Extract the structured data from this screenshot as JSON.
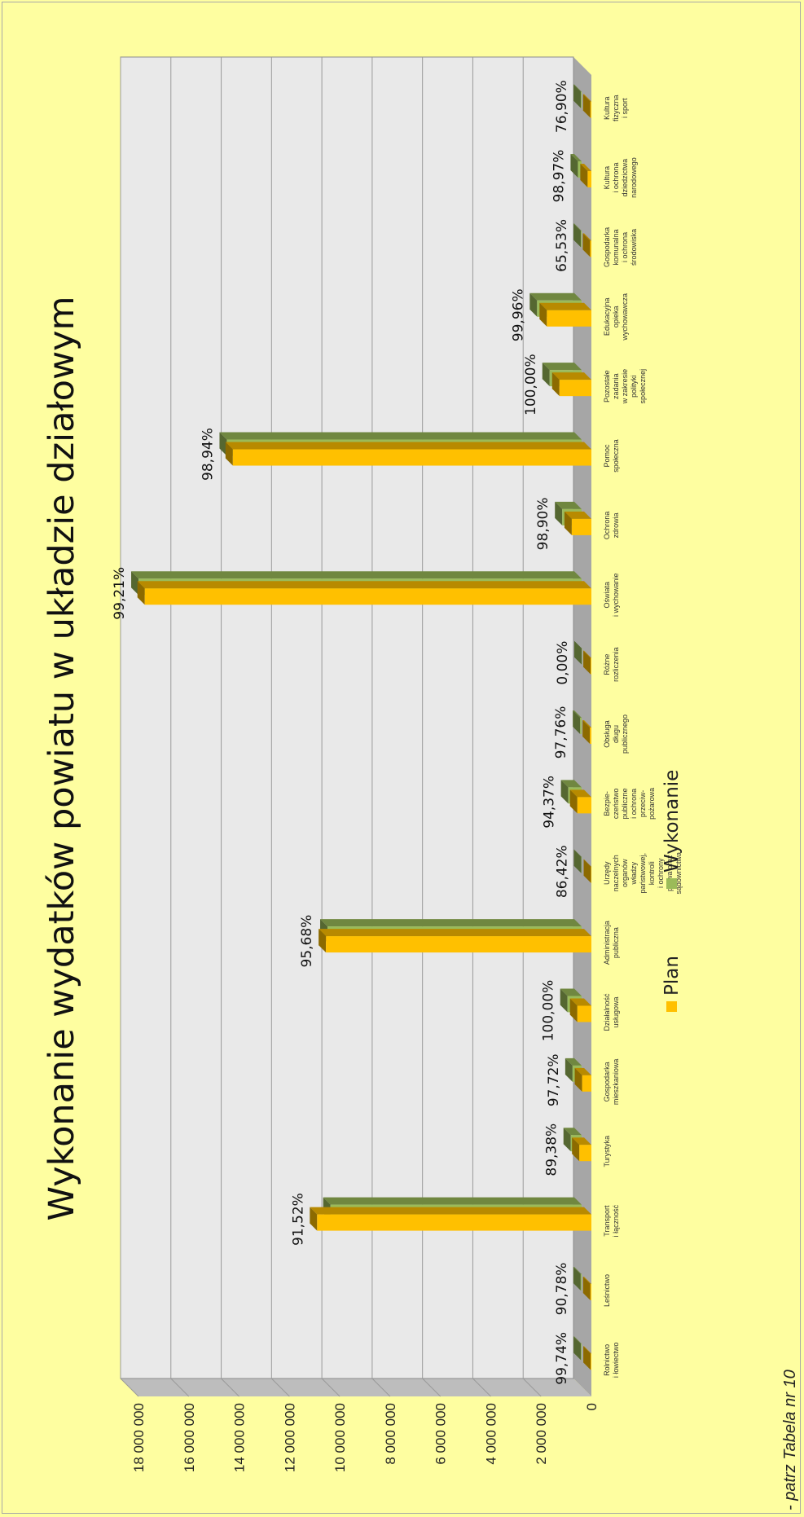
{
  "chart_data": {
    "type": "bar",
    "title": "Wykonanie wydatków powiatu w układzie działowym",
    "note": "- patrz Tabela nr 10",
    "ylim": [
      0,
      18000000
    ],
    "y_ticks": [
      "0",
      "2 000 000",
      "4 000 000",
      "6 000 000",
      "8 000 000",
      "10 000 000",
      "12 000 000",
      "14 000 000",
      "16 000 000",
      "18 000 000"
    ],
    "grid": true,
    "legend_position": "bottom",
    "categories": [
      [
        "Rolnictwo",
        "i łowiectwo"
      ],
      [
        "Leśnictwo"
      ],
      [
        "Transport",
        "i łączność"
      ],
      [
        "Turystyka"
      ],
      [
        "Gospodarka",
        "mieszkaniowa"
      ],
      [
        "Działalność",
        "usługowa"
      ],
      [
        "Administracja",
        "publiczna"
      ],
      [
        "Urzędy",
        "naczelnych",
        "organów",
        "władzy",
        "państwowej,",
        "kontroli",
        "i ochrony",
        "prawa oraz",
        "sądownictwa"
      ],
      [
        "Bezpie-",
        "czeństwo",
        "publiczne",
        "i ochrona",
        "przeciw-",
        "pożarowa"
      ],
      [
        "Obsługa",
        "długu",
        "publicznego"
      ],
      [
        "Różne",
        "rozliczenia"
      ],
      [
        "Oświata",
        "i wychowanie"
      ],
      [
        "Ochrona",
        "zdrowia"
      ],
      [
        "Pomoc",
        "społeczna"
      ],
      [
        "Pozostałe",
        "zadania",
        "w zakresie",
        "polityki",
        "społecznej"
      ],
      [
        "Edukacyjna",
        "opieka",
        "wychowawcza"
      ],
      [
        "Gospodarka",
        "komunalna",
        "i ochrona",
        "środowiska"
      ],
      [
        "Kultura",
        "i ochrona",
        "dziedzictwa",
        "narodowego"
      ],
      [
        "Kultura",
        "fizyczna",
        "i sport"
      ]
    ],
    "series": [
      {
        "name": "Plan",
        "color": "#ffc000",
        "values": [
          30000,
          40000,
          10900000,
          480000,
          370000,
          560000,
          10550000,
          15000,
          560000,
          60000,
          30000,
          17750000,
          780000,
          14250000,
          1270000,
          1770000,
          50000,
          150000,
          40000
        ]
      },
      {
        "name": "Wykonanie",
        "color": "#9bbb59",
        "values": [
          29900,
          36300,
          9980000,
          430000,
          360000,
          560000,
          10100000,
          13000,
          530000,
          58700,
          0,
          17610000,
          770000,
          14100000,
          1270000,
          1770000,
          32800,
          148000,
          30800
        ]
      }
    ],
    "data_labels": [
      "99,74%",
      "90,78%",
      "91,52%",
      "89,38%",
      "97,72%",
      "100,00%",
      "95,68%",
      "86,42%",
      "94,37%",
      "97,76%",
      "0,00%",
      "99,21%",
      "98,90%",
      "98,94%",
      "100,00%",
      "99,96%",
      "65,53%",
      "98,97%",
      "76,90%"
    ]
  }
}
